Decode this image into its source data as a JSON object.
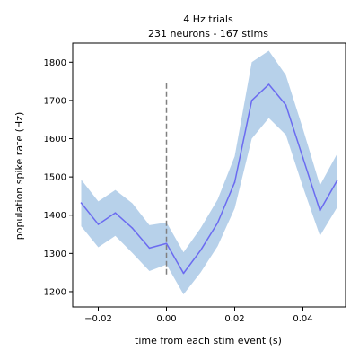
{
  "chart_data": {
    "type": "line",
    "title": [
      "4 Hz trials",
      "231 neurons - 167 stims"
    ],
    "xlabel": "time from each stim event (s)",
    "ylabel": "population spike rate (Hz)",
    "xlim": [
      -0.0275,
      0.0525
    ],
    "ylim": [
      1160,
      1850
    ],
    "x_ticks": [
      -0.02,
      0.0,
      0.02,
      0.04
    ],
    "x_tick_labels": [
      "−0.02",
      "0.00",
      "0.02",
      "0.04"
    ],
    "y_ticks": [
      1200,
      1300,
      1400,
      1500,
      1600,
      1700,
      1800
    ],
    "y_tick_labels": [
      "1200",
      "1300",
      "1400",
      "1500",
      "1600",
      "1700",
      "1800"
    ],
    "grid": false,
    "legend": "none",
    "series": [
      {
        "x": [
          -0.025,
          -0.02,
          -0.015,
          -0.01,
          -0.005,
          0.0,
          0.005,
          0.01,
          0.015,
          0.02,
          0.025,
          0.03,
          0.035,
          0.04,
          0.045,
          0.05
        ],
        "values": [
          1432,
          1376,
          1406,
          1366,
          1314,
          1326,
          1248,
          1308,
          1380,
          1486,
          1700,
          1742,
          1688,
          1550,
          1412,
          1490
        ],
        "upper": [
          1493,
          1436,
          1466,
          1431,
          1374,
          1381,
          1303,
          1366,
          1441,
          1554,
          1800,
          1830,
          1766,
          1626,
          1478,
          1560
        ],
        "lower": [
          1371,
          1316,
          1346,
          1301,
          1254,
          1271,
          1193,
          1250,
          1319,
          1418,
          1600,
          1654,
          1610,
          1474,
          1346,
          1420
        ],
        "line_color": "#6b6bf0",
        "band_color": "#b7d1ea"
      }
    ],
    "vline": {
      "x": 0.0,
      "y_range": [
        1245,
        1745
      ],
      "color": "#808080",
      "style": "dashed"
    }
  }
}
